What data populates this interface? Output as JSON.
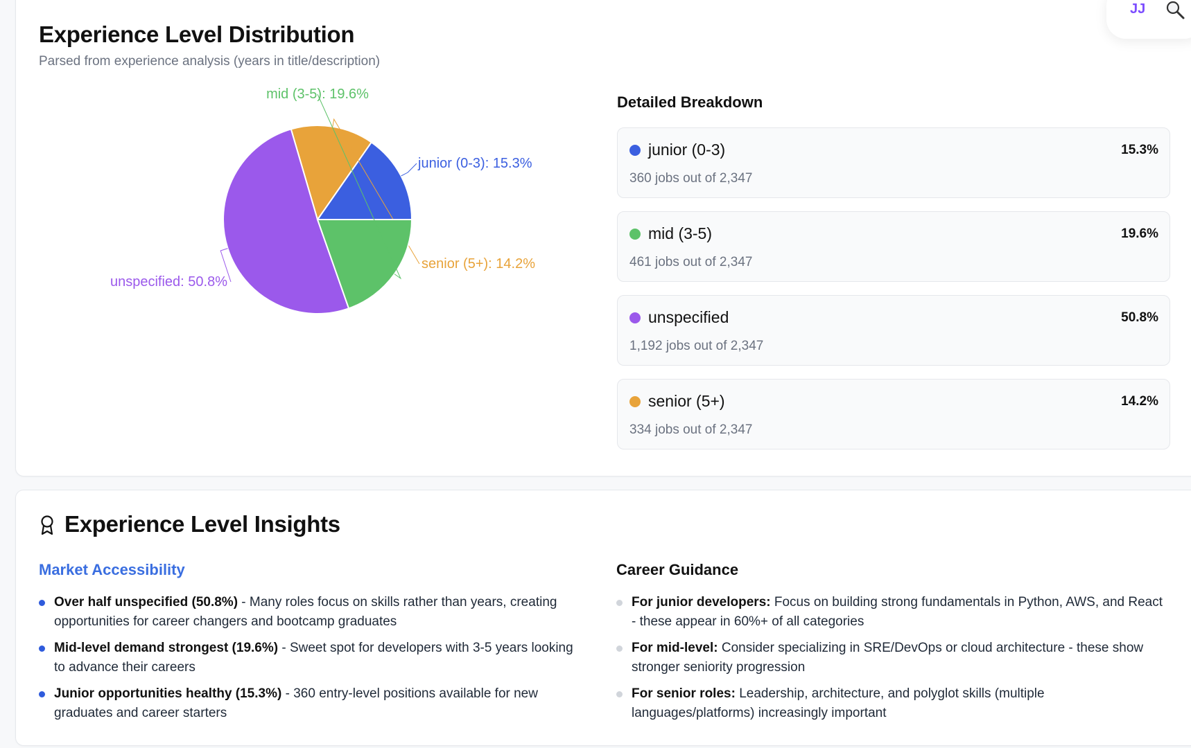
{
  "header": {
    "user_initials": "JJ"
  },
  "distribution": {
    "title": "Experience Level Distribution",
    "subtitle": "Parsed from experience analysis (years in title/description)",
    "breakdown_title": "Detailed Breakdown",
    "items": [
      {
        "label": "junior (0-3)",
        "percent": "15.3%",
        "jobs": "360 jobs out of 2,347",
        "color": "#3b5fe0"
      },
      {
        "label": "mid (3-5)",
        "percent": "19.6%",
        "jobs": "461 jobs out of 2,347",
        "color": "#5dc269"
      },
      {
        "label": "unspecified",
        "percent": "50.8%",
        "jobs": "1,192 jobs out of 2,347",
        "color": "#9b59eb"
      },
      {
        "label": "senior (5+)",
        "percent": "14.2%",
        "jobs": "334 jobs out of 2,347",
        "color": "#e8a33a"
      }
    ]
  },
  "chart_data": {
    "type": "pie",
    "categories": [
      "junior (0-3)",
      "senior (5+)",
      "unspecified",
      "mid (3-5)"
    ],
    "values": [
      15.3,
      14.2,
      50.8,
      19.6
    ],
    "slice_labels": [
      "junior (0-3): 15.3%",
      "senior (5+): 14.2%",
      "unspecified: 50.8%",
      "mid (3-5): 19.6%"
    ],
    "colors": [
      "#3b5fe0",
      "#e8a33a",
      "#9b59eb",
      "#5dc269"
    ]
  },
  "insights": {
    "title": "Experience Level Insights",
    "market": {
      "title": "Market Accessibility",
      "bullets": [
        {
          "bold": "Over half unspecified (50.8%)",
          "text": " - Many roles focus on skills rather than years, creating opportunities for career changers and bootcamp graduates"
        },
        {
          "bold": "Mid-level demand strongest (19.6%)",
          "text": " - Sweet spot for developers with 3-5 years looking to advance their careers"
        },
        {
          "bold": "Junior opportunities healthy (15.3%)",
          "text": " - 360 entry-level positions available for new graduates and career starters"
        }
      ]
    },
    "guidance": {
      "title": "Career Guidance",
      "bullets": [
        {
          "bold": "For junior developers:",
          "text": " Focus on building strong fundamentals in Python, AWS, and React - these appear in 60%+ of all categories"
        },
        {
          "bold": "For mid-level:",
          "text": " Consider specializing in SRE/DevOps or cloud architecture - these show stronger seniority progression"
        },
        {
          "bold": "For senior roles:",
          "text": " Leadership, architecture, and polyglot skills (multiple languages/platforms) increasingly important"
        }
      ]
    }
  }
}
